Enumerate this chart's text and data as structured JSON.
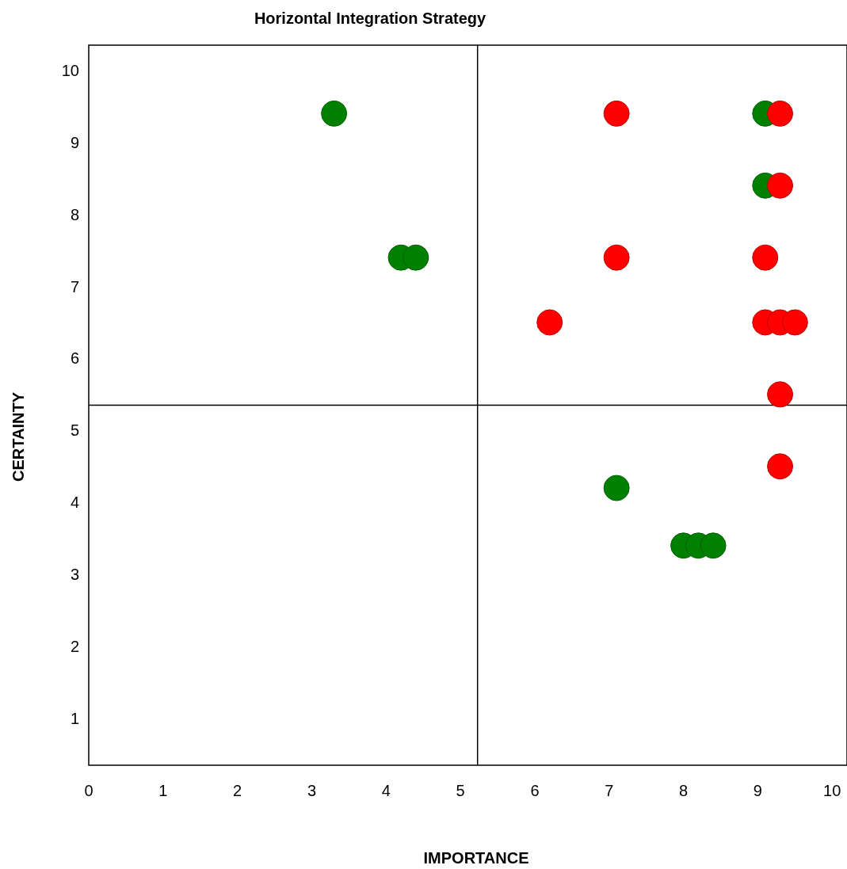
{
  "chart_data": {
    "type": "scatter",
    "title": "Horizontal Integration Strategy",
    "xlabel": "IMPORTANCE",
    "ylabel": "CERTAINTY",
    "xlim": [
      0,
      10.2
    ],
    "ylim": [
      0.35,
      10.35
    ],
    "xticks": [
      0,
      1,
      2,
      3,
      4,
      5,
      6,
      7,
      8,
      9,
      10
    ],
    "yticks": [
      1,
      2,
      3,
      4,
      5,
      6,
      7,
      8,
      9,
      10
    ],
    "grid": false,
    "marker": "circle",
    "ref_lines": [
      {
        "axis": "x",
        "value": 5.23
      },
      {
        "axis": "y",
        "value": 5.35
      }
    ],
    "series": [
      {
        "color": "#008000",
        "x": [
          3.3,
          4.2,
          4.4,
          9.1,
          9.1,
          7.1,
          8.0,
          8.2,
          8.4
        ],
        "values": [
          9.4,
          7.4,
          7.4,
          9.4,
          8.4,
          4.2,
          3.4,
          3.4,
          3.4
        ]
      },
      {
        "color": "#ff0000",
        "x": [
          7.1,
          9.3,
          9.3,
          7.1,
          9.1,
          6.2,
          9.1,
          9.3,
          9.5,
          9.3,
          9.3
        ],
        "values": [
          9.4,
          9.4,
          8.4,
          7.4,
          7.4,
          6.5,
          6.5,
          6.5,
          6.5,
          5.5,
          4.5
        ]
      }
    ]
  }
}
